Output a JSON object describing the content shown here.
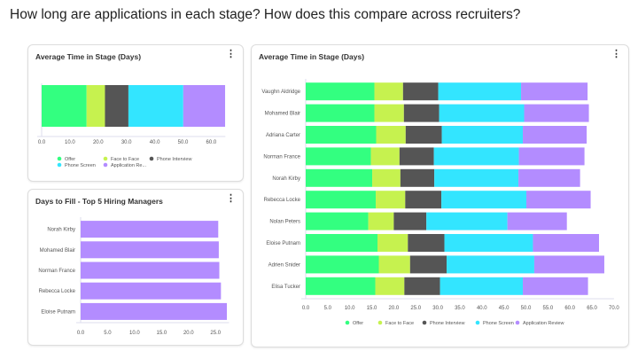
{
  "page_title": "How long are applications in each stage?  How does this compare across recruiters?",
  "colors": {
    "Offer": "#33ff80",
    "Face to Face": "#c6f24f",
    "Phone Interview": "#555555",
    "Phone Screen": "#33e5ff",
    "Application Review": "#b38cff"
  },
  "chart_data": [
    {
      "type": "bar",
      "orientation": "horizontal",
      "stacked": true,
      "title": "Average Time in Stage (Days)",
      "menu_icon": "more-vertical-icon",
      "categories": [
        ""
      ],
      "series": [
        {
          "name": "Offer",
          "values": [
            15.9
          ]
        },
        {
          "name": "Face to Face",
          "values": [
            6.5
          ]
        },
        {
          "name": "Phone Interview",
          "values": [
            8.3
          ]
        },
        {
          "name": "Phone Screen",
          "values": [
            19.4
          ]
        },
        {
          "name": "Application Review",
          "values": [
            14.8
          ]
        }
      ],
      "legend_labels": [
        "Offer",
        "Face to Face",
        "Phone Interview",
        "Phone Screen",
        "Application Re..."
      ],
      "xlim": [
        0,
        65
      ],
      "xticks": [
        "0.0",
        "10.0",
        "20.0",
        "30.0",
        "40.0",
        "50.0",
        "60.0"
      ],
      "legend": "bottom"
    },
    {
      "type": "bar",
      "orientation": "horizontal",
      "title": "Days to Fill - Top 5 Hiring Managers",
      "menu_icon": "more-vertical-icon",
      "categories": [
        "Norah Kirby",
        "Mohamed Blair",
        "Norman France",
        "Rebecca Locke",
        "Eloise Putnam"
      ],
      "series": [
        {
          "name": "Days to Fill",
          "values": [
            25.5,
            25.6,
            25.7,
            26.0,
            27.1
          ]
        }
      ],
      "xlim": [
        0,
        27.5
      ],
      "xticks": [
        "0.0",
        "5.0",
        "10.0",
        "15.0",
        "20.0",
        "25.0"
      ]
    },
    {
      "type": "bar",
      "orientation": "horizontal",
      "stacked": true,
      "title": "Average Time in Stage (Days)",
      "menu_icon": "more-vertical-icon",
      "categories": [
        "Vaughn Aldridge",
        "Mohamed Blair",
        "Adriana Carter",
        "Norman France",
        "Norah Kirby",
        "Rebecca Locke",
        "Nolan Peters",
        "Eloise Putnam",
        "Adrien Snider",
        "Elisa Tucker"
      ],
      "series": [
        {
          "name": "Offer",
          "values": [
            15.6,
            15.6,
            16.0,
            14.8,
            15.1,
            15.9,
            14.2,
            16.3,
            16.6,
            15.8
          ]
        },
        {
          "name": "Face to Face",
          "values": [
            6.5,
            6.7,
            6.7,
            6.5,
            6.4,
            6.7,
            5.8,
            6.9,
            7.1,
            6.6
          ]
        },
        {
          "name": "Phone Interview",
          "values": [
            8.0,
            8.0,
            8.2,
            7.8,
            7.7,
            8.2,
            7.4,
            8.3,
            8.3,
            8.1
          ]
        },
        {
          "name": "Phone Screen",
          "values": [
            18.8,
            19.3,
            18.4,
            19.3,
            19.1,
            19.3,
            18.4,
            20.1,
            19.9,
            18.8
          ]
        },
        {
          "name": "Application Review",
          "values": [
            15.1,
            14.7,
            14.5,
            14.9,
            14.0,
            14.6,
            13.5,
            15.0,
            15.9,
            14.8
          ]
        }
      ],
      "legend_labels": [
        "Offer",
        "Face to Face",
        "Phone Interview",
        "Phone Screen",
        "Application Review"
      ],
      "xlim": [
        0,
        70
      ],
      "xticks": [
        "0.0",
        "5.0",
        "10.0",
        "15.0",
        "20.0",
        "25.0",
        "30.0",
        "35.0",
        "40.0",
        "45.0",
        "50.0",
        "55.0",
        "60.0",
        "65.0",
        "70.0"
      ],
      "legend": "bottom"
    }
  ]
}
